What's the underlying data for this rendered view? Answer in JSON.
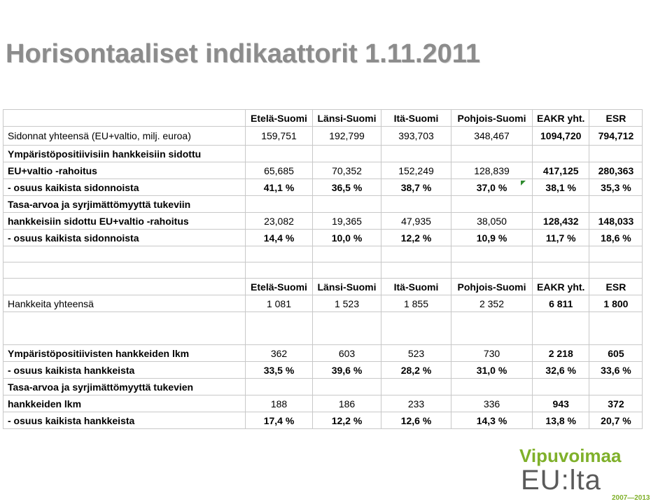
{
  "title": "Horisontaaliset indikaattorit 1.11.2011",
  "section1": {
    "header": [
      "Etelä-Suomi",
      "Länsi-Suomi",
      "Itä-Suomi",
      "Pohjois-Suomi",
      "EAKR yht.",
      "ESR"
    ],
    "row_total": {
      "label": "Sidonnat yhteensä (EU+valtio, milj. euroa)",
      "values": [
        "159,751",
        "192,799",
        "393,703",
        "348,467",
        "1094,720",
        "794,712"
      ]
    },
    "env_label1": "Ympäristöpositiivisiin hankkeisiin sidottu",
    "env_row": {
      "label": "EU+valtio -rahoitus",
      "values": [
        "65,685",
        "70,352",
        "152,249",
        "128,839",
        "417,125",
        "280,363"
      ]
    },
    "env_share": {
      "label": "- osuus kaikista sidonnoista",
      "values": [
        "41,1 %",
        "36,5 %",
        "38,7 %",
        "37,0 %",
        "38,1 %",
        "35,3 %"
      ]
    },
    "eq_label1": "Tasa-arvoa ja syrjimättömyyttä tukeviin",
    "eq_row": {
      "label": "hankkeisiin sidottu EU+valtio -rahoitus",
      "values": [
        "23,082",
        "19,365",
        "47,935",
        "38,050",
        "128,432",
        "148,033"
      ]
    },
    "eq_share": {
      "label": "- osuus kaikista sidonnoista",
      "values": [
        "14,4 %",
        "10,0 %",
        "12,2 %",
        "10,9 %",
        "11,7 %",
        "18,6 %"
      ]
    }
  },
  "section2": {
    "header": [
      "Etelä-Suomi",
      "Länsi-Suomi",
      "Itä-Suomi",
      "Pohjois-Suomi",
      "EAKR yht.",
      "ESR"
    ],
    "row_total": {
      "label": "Hankkeita yhteensä",
      "values": [
        "1 081",
        "1 523",
        "1 855",
        "2 352",
        "6 811",
        "1 800"
      ]
    },
    "env_row": {
      "label": "Ympäristöpositiivisten hankkeiden lkm",
      "values": [
        "362",
        "603",
        "523",
        "730",
        "2 218",
        "605"
      ]
    },
    "env_share": {
      "label": "- osuus kaikista hankkeista",
      "values": [
        "33,5 %",
        "39,6 %",
        "28,2 %",
        "31,0 %",
        "32,6 %",
        "33,6 %"
      ]
    },
    "eq_label1": "Tasa-arvoa ja syrjimättömyyttä tukevien",
    "eq_row": {
      "label": "hankkeiden lkm",
      "values": [
        "188",
        "186",
        "233",
        "336",
        "943",
        "372"
      ]
    },
    "eq_share": {
      "label": "- osuus kaikista hankkeista",
      "values": [
        "17,4 %",
        "12,2 %",
        "12,6 %",
        "14,3 %",
        "13,8 %",
        "20,7 %"
      ]
    }
  },
  "logo": {
    "line1": "Vipuvoimaa",
    "line2": "EU:lta",
    "line3": "2007—2013"
  },
  "colors": {
    "title": "#8c8c8c",
    "logo_green": "#7fb02a",
    "logo_gray": "#5a5a5a",
    "grid": "#c8c8c8"
  }
}
